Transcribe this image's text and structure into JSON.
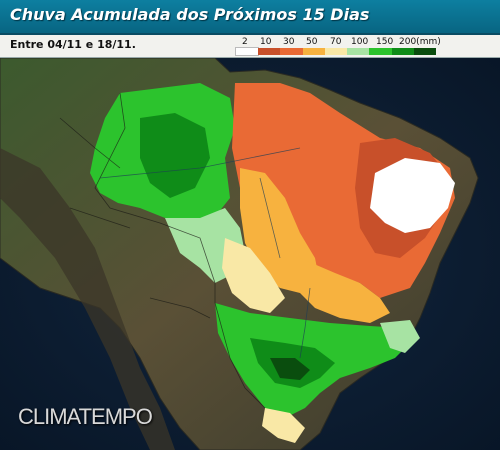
{
  "header": {
    "title": "Chuva Acumulada dos Próximos 15 Dias",
    "date_range": "Entre 04/11 e 18/11."
  },
  "legend": {
    "labels": [
      "2",
      "10",
      "30",
      "50",
      "70",
      "100",
      "150",
      "200(mm)"
    ],
    "colors": [
      "#ffffff",
      "#c8502a",
      "#e96a35",
      "#f7b23f",
      "#f9e8a6",
      "#a7e3a3",
      "#2cc32d",
      "#0f8c18",
      "#0a4d0e"
    ]
  },
  "branding": {
    "logo_text": "CLIMATEMPO"
  },
  "map_layers": [
    "land",
    "ocean",
    "rainfall-contours",
    "borders",
    "rivers"
  ],
  "accent_colors": {
    "title_bar": "#0d7fa0",
    "ocean": "#0b1a2e",
    "land": "#4a4333"
  }
}
